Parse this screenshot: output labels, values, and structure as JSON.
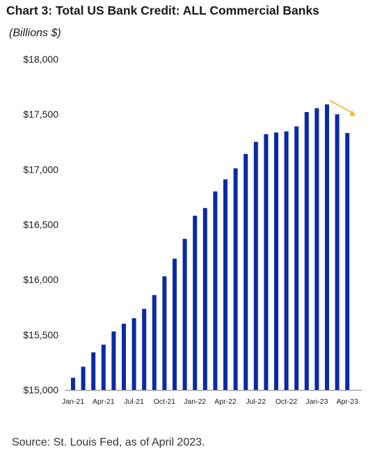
{
  "page": {
    "title": "Chart 3: Total US Bank Credit: ALL Commercial Banks",
    "subtitle": "(Billions $)",
    "source": "Source: St. Louis Fed, as of April 2023."
  },
  "chart_data": {
    "type": "bar",
    "categories": [
      "Jan-21",
      "Feb-21",
      "Mar-21",
      "Apr-21",
      "May-21",
      "Jun-21",
      "Jul-21",
      "Aug-21",
      "Sep-21",
      "Oct-21",
      "Nov-21",
      "Dec-21",
      "Jan-22",
      "Feb-22",
      "Mar-22",
      "Apr-22",
      "May-22",
      "Jun-22",
      "Jul-22",
      "Aug-22",
      "Sep-22",
      "Oct-22",
      "Nov-22",
      "Dec-22",
      "Jan-23",
      "Feb-23",
      "Mar-23",
      "Apr-23"
    ],
    "x_tick_labels": [
      "Jan-21",
      "Apr-21",
      "Jul-21",
      "Oct-21",
      "Jan-22",
      "Apr-22",
      "Jul-22",
      "Oct-22",
      "Jan-23",
      "Apr-23"
    ],
    "values": [
      15110,
      15210,
      15340,
      15410,
      15530,
      15600,
      15650,
      15735,
      15860,
      16030,
      16190,
      16370,
      16580,
      16650,
      16800,
      16910,
      17010,
      17140,
      17250,
      17320,
      17335,
      17345,
      17390,
      17520,
      17555,
      17590,
      17500,
      17330
    ],
    "y_tick_labels": [
      "$15,000",
      "$15,500",
      "$16,000",
      "$16,500",
      "$17,000",
      "$17,500",
      "$18,000"
    ],
    "ylim": [
      15000,
      18000
    ],
    "y_ticks": [
      15000,
      15500,
      16000,
      16500,
      17000,
      17500,
      18000
    ],
    "grid": false,
    "bar_color": "#0a2aa6",
    "annotation": {
      "type": "arrow",
      "color": "#f2b51e",
      "from_value": 17600,
      "to_value": 17460
    }
  }
}
